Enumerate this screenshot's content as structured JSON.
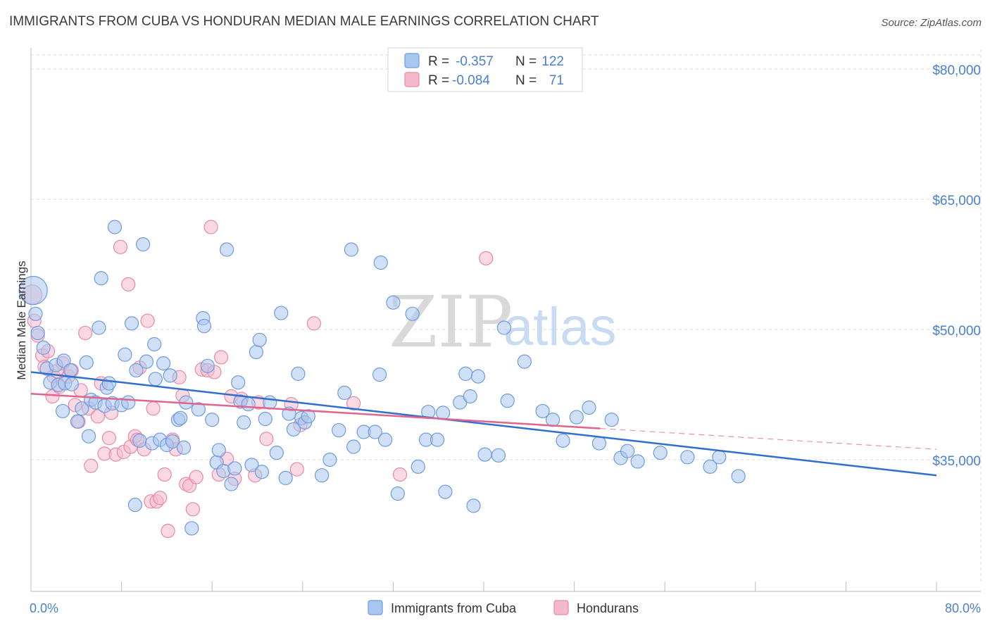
{
  "title": "IMMIGRANTS FROM CUBA VS HONDURAN MEDIAN MALE EARNINGS CORRELATION CHART",
  "source": "Source: ZipAtlas.com",
  "watermark": {
    "zip": "ZIP",
    "atlas": "atlas"
  },
  "colors": {
    "blue_fill": "#a9c6ef",
    "blue_stroke": "#6f9be0",
    "blue_line": "#2f6fd0",
    "pink_fill": "#f5b9cc",
    "pink_stroke": "#e88aa8",
    "pink_line": "#e0648e",
    "accent_text": "#4a7fd0",
    "grid": "#dddddd"
  },
  "stats": [
    {
      "r_label": "R =",
      "r_value": "-0.357",
      "n_label": "N =",
      "n_value": "122"
    },
    {
      "r_label": "R =",
      "r_value": "-0.084",
      "n_label": "N =",
      "n_value": "71"
    }
  ],
  "chart_data": {
    "type": "scatter",
    "title": "IMMIGRANTS FROM CUBA VS HONDURAN MEDIAN MALE EARNINGS CORRELATION CHART",
    "xlabel": "",
    "ylabel": "Median Male Earnings",
    "xlim": [
      0,
      80
    ],
    "ylim": [
      20000,
      85000
    ],
    "x_tick_labels": [
      "0.0%",
      "80.0%"
    ],
    "y_ticks": [
      35000,
      50000,
      65000,
      80000
    ],
    "y_tick_labels": [
      "$35,000",
      "$50,000",
      "$65,000",
      "$80,000"
    ],
    "grid": "horizontal dashed",
    "legend_position": "bottom-center",
    "series": [
      {
        "name": "Immigrants from Cuba",
        "color": "#a9c6ef",
        "trend": {
          "x": [
            0,
            80
          ],
          "y": [
            45100,
            33200
          ],
          "style": "solid"
        },
        "points": [
          [
            0.2,
            54500
          ],
          [
            0.4,
            51800
          ],
          [
            0.6,
            49600
          ],
          [
            1.1,
            47900
          ],
          [
            1.4,
            45500
          ],
          [
            1.7,
            43900
          ],
          [
            2.2,
            45900
          ],
          [
            2.4,
            43600
          ],
          [
            2.8,
            40600
          ],
          [
            2.9,
            46400
          ],
          [
            3.0,
            43800
          ],
          [
            3.5,
            45300
          ],
          [
            3.6,
            43700
          ],
          [
            4.1,
            39400
          ],
          [
            4.5,
            40900
          ],
          [
            4.9,
            46200
          ],
          [
            5.1,
            37700
          ],
          [
            5.3,
            41900
          ],
          [
            5.7,
            41600
          ],
          [
            6.0,
            50200
          ],
          [
            6.2,
            55900
          ],
          [
            6.5,
            41200
          ],
          [
            6.7,
            43300
          ],
          [
            6.9,
            43800
          ],
          [
            7.2,
            41500
          ],
          [
            7.4,
            61800
          ],
          [
            8.0,
            41300
          ],
          [
            8.3,
            47100
          ],
          [
            8.6,
            41600
          ],
          [
            8.9,
            50700
          ],
          [
            9.2,
            29800
          ],
          [
            9.3,
            45300
          ],
          [
            9.6,
            37200
          ],
          [
            9.9,
            59800
          ],
          [
            10.2,
            46300
          ],
          [
            10.7,
            36900
          ],
          [
            10.9,
            48300
          ],
          [
            11.0,
            44300
          ],
          [
            11.4,
            37300
          ],
          [
            11.7,
            46100
          ],
          [
            12.0,
            36700
          ],
          [
            12.3,
            44700
          ],
          [
            12.5,
            37100
          ],
          [
            13.0,
            39600
          ],
          [
            13.2,
            39800
          ],
          [
            13.5,
            36400
          ],
          [
            13.7,
            41600
          ],
          [
            14.2,
            27100
          ],
          [
            14.8,
            40800
          ],
          [
            15.2,
            51300
          ],
          [
            15.3,
            50400
          ],
          [
            15.6,
            45800
          ],
          [
            16.0,
            39600
          ],
          [
            16.4,
            34700
          ],
          [
            16.6,
            36100
          ],
          [
            17.0,
            33700
          ],
          [
            17.3,
            59200
          ],
          [
            17.7,
            32200
          ],
          [
            18.0,
            34000
          ],
          [
            18.3,
            43900
          ],
          [
            18.5,
            41700
          ],
          [
            18.8,
            39300
          ],
          [
            19.2,
            41400
          ],
          [
            19.5,
            34400
          ],
          [
            19.9,
            47400
          ],
          [
            20.2,
            48800
          ],
          [
            20.4,
            33600
          ],
          [
            20.7,
            39700
          ],
          [
            21.1,
            41600
          ],
          [
            21.7,
            35800
          ],
          [
            22.1,
            51900
          ],
          [
            22.5,
            32900
          ],
          [
            22.8,
            40300
          ],
          [
            23.2,
            38500
          ],
          [
            23.6,
            44900
          ],
          [
            23.9,
            39800
          ],
          [
            24.2,
            39300
          ],
          [
            24.5,
            40000
          ],
          [
            25.7,
            33200
          ],
          [
            26.4,
            35000
          ],
          [
            27.2,
            38400
          ],
          [
            27.7,
            42700
          ],
          [
            28.3,
            59200
          ],
          [
            28.5,
            36500
          ],
          [
            29.4,
            38200
          ],
          [
            30.4,
            38200
          ],
          [
            30.8,
            44800
          ],
          [
            30.9,
            57700
          ],
          [
            31.3,
            37300
          ],
          [
            32.0,
            53100
          ],
          [
            32.4,
            31100
          ],
          [
            33.7,
            51800
          ],
          [
            34.2,
            34200
          ],
          [
            34.9,
            37300
          ],
          [
            35.1,
            40500
          ],
          [
            35.9,
            37300
          ],
          [
            36.4,
            40400
          ],
          [
            36.6,
            31300
          ],
          [
            37.9,
            41600
          ],
          [
            38.4,
            44900
          ],
          [
            38.8,
            42300
          ],
          [
            39.1,
            29700
          ],
          [
            39.5,
            44600
          ],
          [
            40.1,
            35600
          ],
          [
            41.3,
            35500
          ],
          [
            41.8,
            50200
          ],
          [
            42.1,
            41800
          ],
          [
            43.6,
            46300
          ],
          [
            45.2,
            40600
          ],
          [
            46.1,
            39600
          ],
          [
            47.0,
            37200
          ],
          [
            48.2,
            39900
          ],
          [
            49.3,
            41000
          ],
          [
            50.2,
            36900
          ],
          [
            51.3,
            39600
          ],
          [
            52.1,
            35200
          ],
          [
            52.7,
            36000
          ],
          [
            53.6,
            34800
          ],
          [
            55.6,
            35800
          ],
          [
            58.0,
            35300
          ],
          [
            60.0,
            34200
          ],
          [
            60.8,
            35300
          ],
          [
            62.5,
            33100
          ]
        ]
      },
      {
        "name": "Hondurans",
        "color": "#f5b9cc",
        "trend": {
          "x": [
            0,
            50.3
          ],
          "y": [
            42600,
            38600
          ],
          "style": "solid",
          "extend_to": [
            80,
            36200
          ],
          "extend_style": "dashed"
        },
        "points": [
          [
            0.1,
            54000
          ],
          [
            0.3,
            51000
          ],
          [
            0.6,
            49300
          ],
          [
            1.0,
            47000
          ],
          [
            1.2,
            45700
          ],
          [
            1.5,
            47500
          ],
          [
            1.9,
            42300
          ],
          [
            2.0,
            44600
          ],
          [
            2.3,
            45200
          ],
          [
            2.5,
            43400
          ],
          [
            2.8,
            46100
          ],
          [
            3.3,
            44600
          ],
          [
            3.6,
            45300
          ],
          [
            3.9,
            41300
          ],
          [
            4.2,
            39400
          ],
          [
            4.4,
            43000
          ],
          [
            4.8,
            49600
          ],
          [
            5.1,
            40900
          ],
          [
            5.3,
            34300
          ],
          [
            5.9,
            40000
          ],
          [
            6.2,
            43800
          ],
          [
            6.5,
            35700
          ],
          [
            6.9,
            37500
          ],
          [
            7.1,
            40400
          ],
          [
            7.5,
            35600
          ],
          [
            7.9,
            59500
          ],
          [
            8.2,
            35900
          ],
          [
            8.6,
            55200
          ],
          [
            8.8,
            36500
          ],
          [
            9.2,
            37700
          ],
          [
            9.4,
            37300
          ],
          [
            9.6,
            45600
          ],
          [
            10.0,
            36200
          ],
          [
            10.3,
            51000
          ],
          [
            10.6,
            30200
          ],
          [
            10.8,
            40900
          ],
          [
            11.1,
            30200
          ],
          [
            11.4,
            30600
          ],
          [
            11.8,
            33300
          ],
          [
            12.1,
            26800
          ],
          [
            12.5,
            37300
          ],
          [
            12.8,
            36200
          ],
          [
            13.1,
            44500
          ],
          [
            13.4,
            42400
          ],
          [
            13.7,
            32200
          ],
          [
            14.0,
            32000
          ],
          [
            14.3,
            29300
          ],
          [
            14.6,
            33000
          ],
          [
            15.1,
            45400
          ],
          [
            15.6,
            45300
          ],
          [
            15.9,
            61800
          ],
          [
            16.2,
            45100
          ],
          [
            16.6,
            33300
          ],
          [
            16.8,
            46800
          ],
          [
            17.3,
            35100
          ],
          [
            17.7,
            42300
          ],
          [
            18.0,
            32800
          ],
          [
            18.6,
            42000
          ],
          [
            19.8,
            33200
          ],
          [
            20.1,
            41600
          ],
          [
            20.8,
            37400
          ],
          [
            23.0,
            41400
          ],
          [
            23.5,
            33900
          ],
          [
            23.8,
            39000
          ],
          [
            25.0,
            50700
          ],
          [
            28.5,
            41500
          ],
          [
            32.6,
            33300
          ],
          [
            40.2,
            58200
          ]
        ]
      }
    ]
  },
  "axis": {
    "ylabel": "Median Male Earnings",
    "x_min_label": "0.0%",
    "x_max_label": "80.0%"
  }
}
